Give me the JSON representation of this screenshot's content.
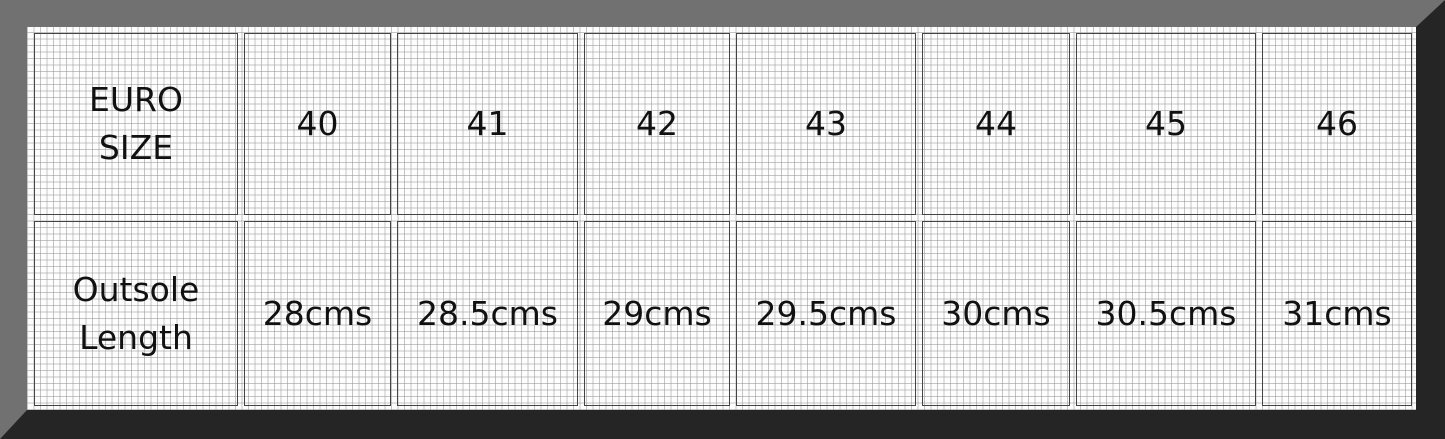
{
  "table": {
    "rows": [
      {
        "header": "EURO\nSIZE",
        "cells": [
          "40",
          "41",
          "42",
          "43",
          "44",
          "45",
          "46"
        ]
      },
      {
        "header": "Outsole\nLength",
        "cells": [
          "28cms",
          "28.5cms",
          "29cms",
          "29.5cms",
          "30cms",
          "30.5cms",
          "31cms"
        ]
      }
    ]
  },
  "colors": {
    "frame_light": "#717171",
    "frame_dark": "#252525",
    "grid": "#c8c8c8"
  }
}
